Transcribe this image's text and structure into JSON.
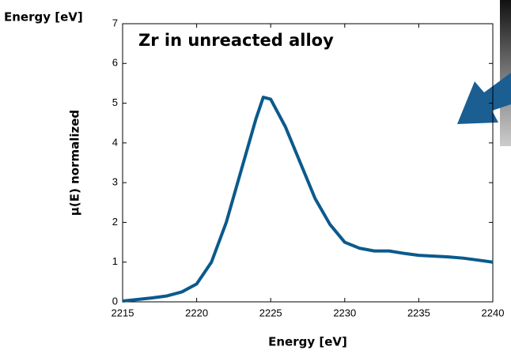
{
  "chart_data": {
    "type": "line",
    "title": "Zr in unreacted alloy",
    "annotation": "Energy [eV]",
    "x_label": "Energy [eV]",
    "y_label": "μ(E) normalized",
    "x": [
      2215,
      2216,
      2217,
      2218,
      2219,
      2220,
      2221,
      2222,
      2223,
      2224,
      2224.5,
      2225,
      2226,
      2227,
      2228,
      2229,
      2230,
      2231,
      2232,
      2233,
      2234,
      2235,
      2236,
      2237,
      2238,
      2239,
      2240
    ],
    "series": [
      {
        "color": "#0b5a8c",
        "values": [
          0.02,
          0.06,
          0.1,
          0.15,
          0.25,
          0.45,
          1.0,
          2.0,
          3.3,
          4.6,
          5.15,
          5.1,
          4.4,
          3.5,
          2.6,
          1.95,
          1.5,
          1.35,
          1.28,
          1.28,
          1.22,
          1.17,
          1.15,
          1.13,
          1.1,
          1.05,
          1.0
        ]
      }
    ],
    "xlim": [
      2215,
      2240
    ],
    "xticks": [
      2215,
      2220,
      2225,
      2230,
      2235,
      2240
    ],
    "ylim": [
      0,
      7
    ],
    "yticks": [
      0,
      1,
      2,
      3,
      4,
      5,
      6,
      7
    ]
  }
}
